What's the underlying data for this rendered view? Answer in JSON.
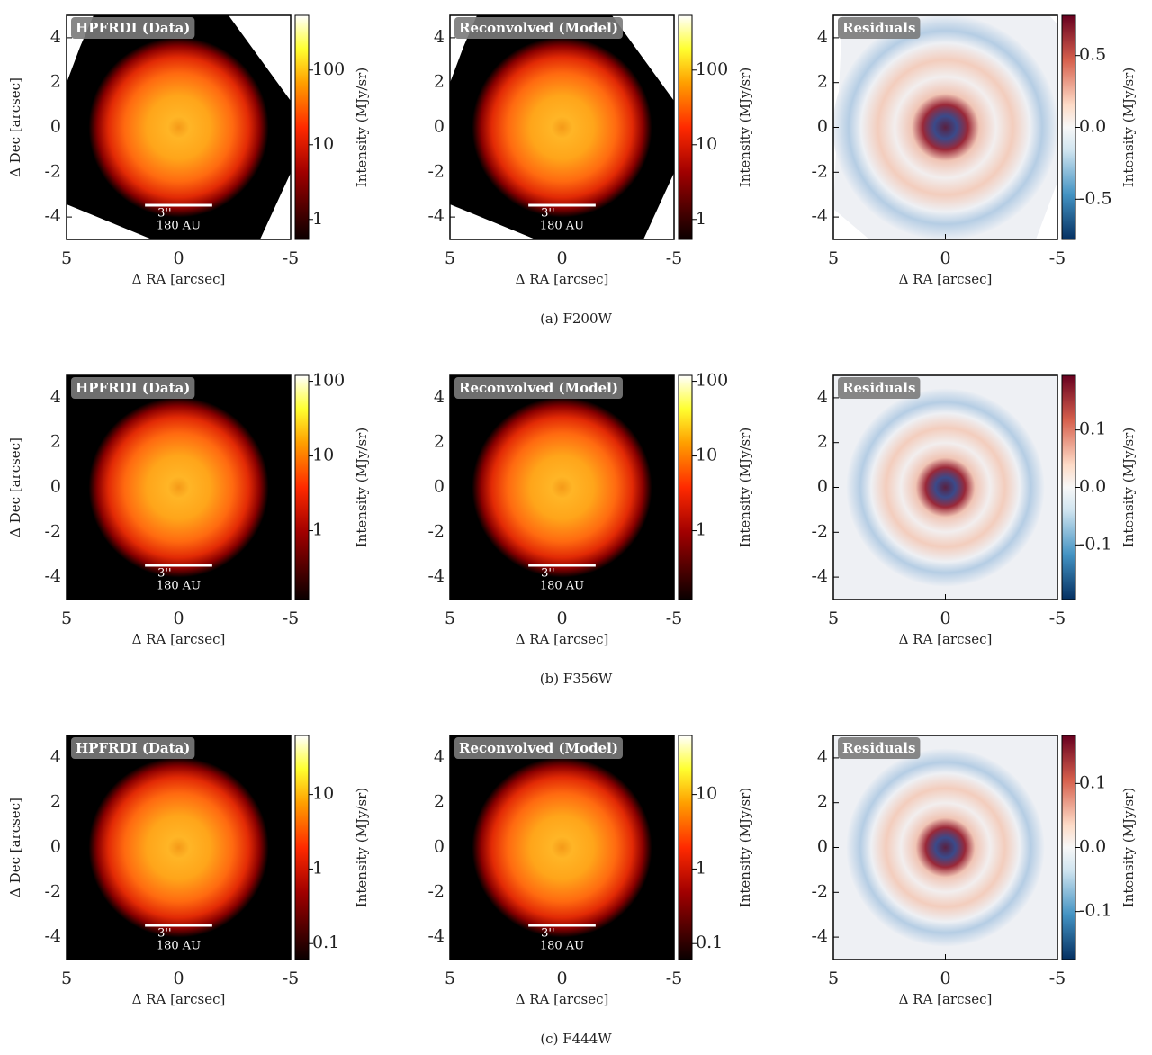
{
  "figure": {
    "panel_titles": [
      "HPFRDI (Data)",
      "Reconvolved (Model)",
      "Residuals"
    ],
    "x_label": "Δ RA [arcsec]",
    "y_label": "Δ Dec [arcsec]",
    "colorbar_label": "Intensity (MJy/sr)",
    "xlim": [
      5,
      -5
    ],
    "ylim": [
      -5,
      5
    ],
    "xticks": [
      5,
      0,
      -5
    ],
    "yticks": [
      -4,
      -2,
      0,
      2,
      4
    ],
    "scale_bar": {
      "length": {
        "value": 3,
        "label": "3''"
      },
      "distance": "180 AU"
    },
    "rows": [
      {
        "caption": "(a) F200W",
        "intensity": {
          "log": true,
          "lim": [
            0.54,
            540
          ],
          "ticks": [
            1,
            10,
            100
          ]
        },
        "residual": {
          "lim": [
            -0.78,
            0.78
          ],
          "ticks": [
            -0.5,
            {
              "value": 0,
              "label": "0.0"
            },
            0.5
          ]
        }
      },
      {
        "caption": "(b) F356W",
        "intensity": {
          "log": true,
          "lim": [
            0.12,
            120
          ],
          "ticks": [
            1,
            10,
            100
          ]
        },
        "residual": {
          "lim": [
            -0.195,
            0.195
          ],
          "ticks": [
            -0.1,
            {
              "value": 0,
              "label": "0.0"
            },
            0.1
          ]
        }
      },
      {
        "caption": "(c) F444W",
        "intensity": {
          "log": true,
          "lim": [
            0.061,
            62
          ],
          "ticks": [
            0.1,
            1,
            10
          ]
        },
        "residual": {
          "lim": [
            -0.175,
            0.175
          ],
          "ticks": [
            -0.1,
            {
              "value": 0,
              "label": "0.0"
            },
            0.1
          ]
        }
      }
    ]
  }
}
